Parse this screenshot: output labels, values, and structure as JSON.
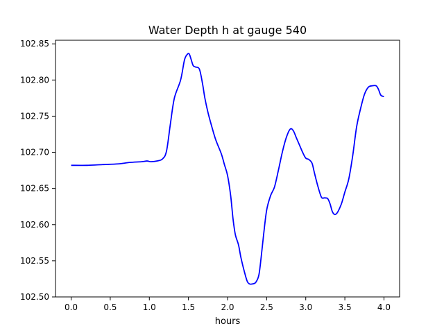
{
  "chart_data": {
    "type": "line",
    "title": "Water Depth h at gauge 540",
    "xlabel": "hours",
    "ylabel": "",
    "xlim": [
      -0.2,
      4.2
    ],
    "ylim": [
      102.5,
      102.855
    ],
    "x_ticks": [
      0.0,
      0.5,
      1.0,
      1.5,
      2.0,
      2.5,
      3.0,
      3.5,
      4.0
    ],
    "x_tick_labels": [
      "0.0",
      "0.5",
      "1.0",
      "1.5",
      "2.0",
      "2.5",
      "3.0",
      "3.5",
      "4.0"
    ],
    "y_ticks": [
      102.5,
      102.55,
      102.6,
      102.65,
      102.7,
      102.75,
      102.8,
      102.85
    ],
    "y_tick_labels": [
      "102.50",
      "102.55",
      "102.60",
      "102.65",
      "102.70",
      "102.75",
      "102.80",
      "102.85"
    ],
    "grid": false,
    "series": [
      {
        "color": "#0000ff",
        "x": [
          0.0,
          0.2,
          0.4,
          0.6,
          0.75,
          0.9,
          0.97,
          1.02,
          1.1,
          1.17,
          1.22,
          1.27,
          1.32,
          1.4,
          1.45,
          1.49,
          1.51,
          1.53,
          1.56,
          1.59,
          1.64,
          1.68,
          1.71,
          1.75,
          1.8,
          1.85,
          1.92,
          1.96,
          2.0,
          2.04,
          2.07,
          2.1,
          2.14,
          2.17,
          2.21,
          2.25,
          2.28,
          2.32,
          2.36,
          2.4,
          2.43,
          2.46,
          2.5,
          2.55,
          2.6,
          2.65,
          2.7,
          2.75,
          2.8,
          2.84,
          2.88,
          2.92,
          2.96,
          3.0,
          3.04,
          3.08,
          3.11,
          3.15,
          3.2,
          3.24,
          3.28,
          3.31,
          3.34,
          3.37,
          3.4,
          3.43,
          3.46,
          3.5,
          3.55,
          3.6,
          3.65,
          3.7,
          3.75,
          3.8,
          3.85,
          3.9,
          3.93,
          3.96,
          4.0
        ],
        "y": [
          102.682,
          102.682,
          102.683,
          102.684,
          102.686,
          102.687,
          102.688,
          102.687,
          102.688,
          102.691,
          102.702,
          102.74,
          102.775,
          102.8,
          102.828,
          102.836,
          102.836,
          102.83,
          102.82,
          102.818,
          102.815,
          102.795,
          102.775,
          102.755,
          102.735,
          102.717,
          102.698,
          102.683,
          102.668,
          102.64,
          102.608,
          102.586,
          102.572,
          102.555,
          102.537,
          102.522,
          102.518,
          102.518,
          102.52,
          102.53,
          102.555,
          102.585,
          102.62,
          102.64,
          102.652,
          102.675,
          102.7,
          102.72,
          102.732,
          102.73,
          102.72,
          102.71,
          102.7,
          102.692,
          102.69,
          102.685,
          102.672,
          102.655,
          102.638,
          102.637,
          102.636,
          102.629,
          102.618,
          102.614,
          102.616,
          102.622,
          102.63,
          102.645,
          102.663,
          102.695,
          102.735,
          102.76,
          102.78,
          102.79,
          102.792,
          102.792,
          102.787,
          102.779,
          102.777
        ]
      }
    ]
  }
}
